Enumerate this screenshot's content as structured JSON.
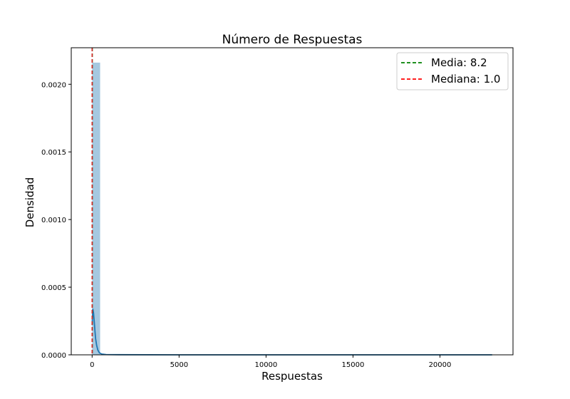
{
  "chart_data": {
    "type": "histogram",
    "title": "Número de Respuestas",
    "xlabel": "Respuestas",
    "ylabel": "Densidad",
    "xlim": [
      -1200,
      24200
    ],
    "ylim": [
      0,
      0.00227
    ],
    "x_ticks": [
      0,
      5000,
      10000,
      15000,
      20000
    ],
    "x_tick_labels": [
      "0",
      "5000",
      "10000",
      "15000",
      "20000"
    ],
    "y_ticks": [
      0,
      0.0005,
      0.001,
      0.0015,
      0.002
    ],
    "y_tick_labels": [
      "0.0000",
      "0.0005",
      "0.0010",
      "0.0015",
      "0.0020"
    ],
    "grid": false,
    "histogram": {
      "bin_width": 460,
      "bins": [
        {
          "x0": 0,
          "x1": 460,
          "density": 0.00216
        }
      ],
      "color": "#a6c8e0"
    },
    "kde": {
      "color": "#1f77b4",
      "points": [
        [
          0,
          0.00022
        ],
        [
          40,
          0.00034
        ],
        [
          80,
          0.00031
        ],
        [
          120,
          0.00025
        ],
        [
          160,
          0.00018
        ],
        [
          200,
          0.00012
        ],
        [
          260,
          7e-05
        ],
        [
          330,
          3.5e-05
        ],
        [
          420,
          1.5e-05
        ],
        [
          550,
          6e-06
        ],
        [
          800,
          2e-06
        ],
        [
          1500,
          1e-06
        ],
        [
          5000,
          0.0
        ],
        [
          23000,
          0.0
        ]
      ]
    },
    "lines": [
      {
        "label": "Media: 8.2",
        "x": 8.2,
        "color": "#008000",
        "style": "dashed"
      },
      {
        "label": "Mediana: 1.0",
        "x": 1.0,
        "color": "#d62728",
        "style": "dashed"
      }
    ],
    "legend": {
      "placement": "top-right",
      "entries": [
        {
          "label": "Media: 8.2",
          "color": "#008000"
        },
        {
          "label": "Mediana: 1.0",
          "color": "#ff0000"
        }
      ]
    }
  }
}
